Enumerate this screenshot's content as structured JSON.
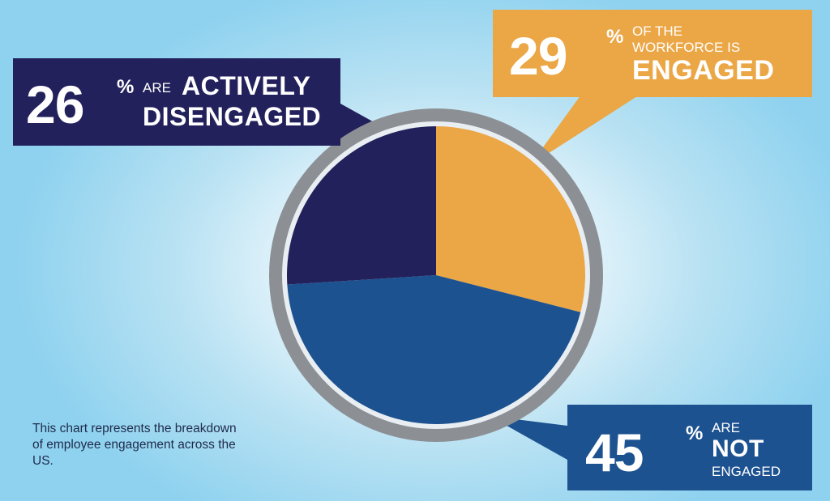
{
  "colors": {
    "engaged": "#eba645",
    "not_engaged": "#1d5290",
    "actively_disengaged": "#23215c",
    "ring": "#8c9095",
    "note_text": "#1f2a4a"
  },
  "chart_data": {
    "type": "pie",
    "slices": [
      {
        "key": "engaged",
        "value": 29,
        "color": "#eba645"
      },
      {
        "key": "not_engaged",
        "value": 45,
        "color": "#1d5290"
      },
      {
        "key": "actively_disengaged",
        "value": 26,
        "color": "#23215c"
      }
    ]
  },
  "callouts": {
    "disengaged": {
      "number": "26",
      "percent": "%",
      "line1": "ARE",
      "line1_bold": "ACTIVELY",
      "line2_bold": "DISENGAGED"
    },
    "engaged": {
      "number": "29",
      "percent": "%",
      "line1": "OF THE",
      "line2": "WORKFORCE IS",
      "line3_bold": "ENGAGED"
    },
    "not_engaged": {
      "number": "45",
      "percent": "%",
      "line1": "ARE",
      "line2_bold": "NOT",
      "line3": "ENGAGED"
    }
  },
  "note": "This chart represents the breakdown of employee engagement across the US."
}
